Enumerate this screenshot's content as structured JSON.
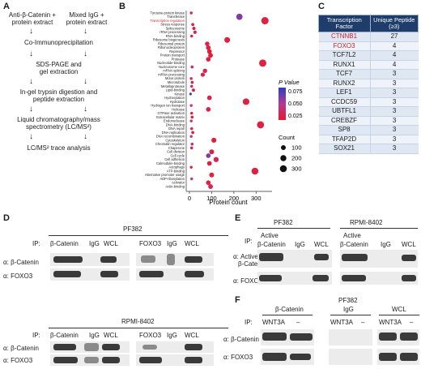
{
  "panels": {
    "A": "A",
    "B": "B",
    "C": "C",
    "D": "D",
    "E": "E",
    "F": "F"
  },
  "panelA": {
    "left_input": [
      "Anti-β-Catenin +",
      "protein extract"
    ],
    "right_input": [
      "Mixed IgG +",
      "protein extract"
    ],
    "steps": [
      "Co-Immunoprecipitation",
      "SDS-PAGE and",
      "gel extraction",
      "In-gel trypsin digestion and",
      "peptide extraction",
      "Liquid chromatography/mass",
      "spectrometry (LC/MS²)",
      "LC/MS² trace analysis"
    ]
  },
  "chart_data": {
    "type": "scatter",
    "xlabel": "Protein count",
    "xlim": [
      0,
      350
    ],
    "xticks": [
      0,
      100,
      200,
      300
    ],
    "categories": [
      "Tyrosine-protein kinase",
      "Transferase",
      "Transcription regulation",
      "Stress response",
      "Spliceosome",
      "rRNA processing",
      "RNA-binding",
      "Ribosome biogenesis",
      "Ribosomal protein",
      "Ribonucleoprotein",
      "Repressor",
      "Protein transport",
      "Protease",
      "Nucleotide-binding",
      "Nucleosome core",
      "mRNA splicing",
      "mRNA processing",
      "Motor protein",
      "Microtubule",
      "Metalloprotease",
      "Lipid-binding",
      "Kinase",
      "Hydroxylation",
      "Hydrolase",
      "Hydrogen ion transport",
      "Helicase",
      "GTPase activation",
      "Extracellular matrix",
      "Endonuclease",
      "DNA-binding",
      "DNA repair",
      "DNA replication",
      "DNA recombination",
      "Cytoskeleton",
      "Chromatin regulator",
      "Chaperone",
      "Cell division",
      "Cell cycle",
      "Cell adhesion",
      "Calmodulin-binding",
      "Autophagy",
      "ATP-binding",
      "Alternative promoter usage",
      "ADP-ribosylation",
      "Activator",
      "Actin-binding"
    ],
    "highlight_category": "Transcription regulation",
    "x": [
      8,
      225,
      340,
      15,
      20,
      25,
      10,
      170,
      80,
      85,
      90,
      95,
      85,
      330,
      12,
      70,
      60,
      8,
      12,
      10,
      18,
      5,
      90,
      255,
      8,
      85,
      10,
      12,
      8,
      320,
      10,
      15,
      8,
      110,
      12,
      10,
      100,
      85,
      120,
      90,
      8,
      295,
      100,
      10,
      85,
      95
    ],
    "pvalue": [
      0.03,
      0.06,
      0.03,
      0.03,
      0.028,
      0.035,
      0.03,
      0.03,
      0.035,
      0.03,
      0.028,
      0.03,
      0.028,
      0.03,
      0.04,
      0.035,
      0.03,
      0.035,
      0.03,
      0.04,
      0.03,
      0.07,
      0.035,
      0.03,
      0.05,
      0.03,
      0.035,
      0.03,
      0.04,
      0.03,
      0.035,
      0.03,
      0.045,
      0.03,
      0.045,
      0.03,
      0.03,
      0.06,
      0.035,
      0.03,
      0.03,
      0.03,
      0.03,
      0.05,
      0.03,
      0.035
    ],
    "color_legend": {
      "title": "P Value",
      "ticks": [
        "0.075",
        "0.050",
        "0.025"
      ],
      "colors": [
        "#2b3fbf",
        "#b53a95",
        "#e8192c"
      ]
    },
    "size_legend": {
      "title": "Count",
      "values": [
        100,
        200,
        300
      ]
    }
  },
  "tableC": {
    "headers": [
      "Transcription Factor",
      "Unique Peptide (≥3)"
    ],
    "rows": [
      {
        "tf": "CTNNB1",
        "n": "27",
        "red": true
      },
      {
        "tf": "FOXO3",
        "n": "4",
        "red": true
      },
      {
        "tf": "TCF7L2",
        "n": "4",
        "red": false
      },
      {
        "tf": "RUNX1",
        "n": "4",
        "red": false
      },
      {
        "tf": "TCF7",
        "n": "3",
        "red": false
      },
      {
        "tf": "RUNX2",
        "n": "3",
        "red": false
      },
      {
        "tf": "LEF1",
        "n": "3",
        "red": false
      },
      {
        "tf": "CCDC59",
        "n": "3",
        "red": false
      },
      {
        "tf": "UBTFL1",
        "n": "3",
        "red": false
      },
      {
        "tf": "CREBZF",
        "n": "3",
        "red": false
      },
      {
        "tf": "SP8",
        "n": "3",
        "red": false
      },
      {
        "tf": "TFAP2D",
        "n": "3",
        "red": false
      },
      {
        "tf": "SOX21",
        "n": "3",
        "red": false
      }
    ]
  },
  "panelD": {
    "pf_title": "PF382",
    "rpmi_title": "RPMI-8402",
    "ip_label": "IP:",
    "lanes_pf": [
      "β-Catenin",
      "IgG",
      "WCL",
      "FOXO3",
      "IgG",
      "WCL"
    ],
    "lanes_rpmi": [
      "β-Catenin",
      "IgG",
      "WCL",
      "FOXO3",
      "IgG",
      "WCL"
    ],
    "rows": [
      "α: β-Catenin",
      "α: FOXO3"
    ]
  },
  "panelE": {
    "pf_title": "PF382",
    "rpmi_title": "RPMI-8402",
    "ip_label": "IP:",
    "active": "Active",
    "lanes": [
      "β-Catenin",
      "IgG",
      "WCL"
    ],
    "rows": [
      "α: Active",
      "β-Catenin",
      "α: FOXO3"
    ]
  },
  "panelF": {
    "ip_label": "IP:",
    "groups": [
      "β-Catenin",
      "PF382",
      "IgG",
      "WCL"
    ],
    "lanes": [
      "WNT3A",
      "–"
    ],
    "rows": [
      "α: β-Catenin",
      "α: FOXO3"
    ]
  }
}
